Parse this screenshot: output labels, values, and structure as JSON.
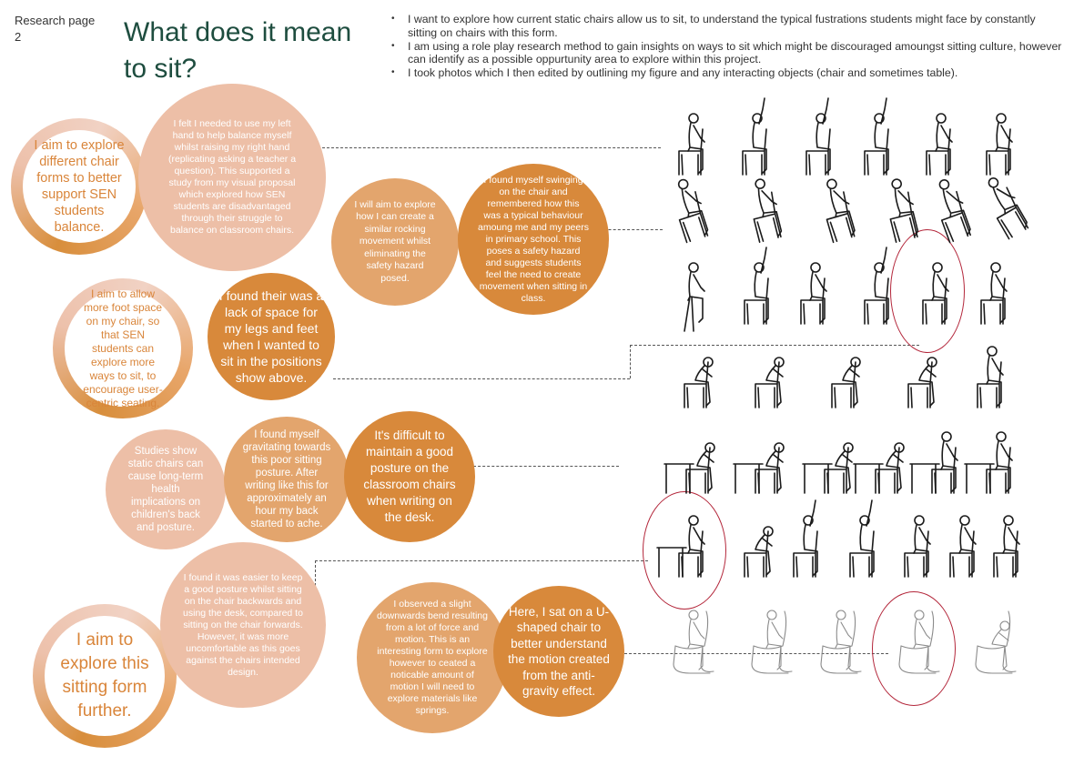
{
  "header": {
    "page_label": "Research page 2",
    "title": "What does it mean to sit?"
  },
  "intro_bullets": [
    "I want to explore how current static chairs allow us to sit, to understand the typical fustrations students might face by constantly sitting on chairs with this form.",
    "I am using a role play research method to gain insights on ways to sit which might be discouraged amoungst sitting culture, however can identify as a possible oppurtunity area to explore within this project.",
    "I took photos which I then edited by outlining my figure and any interacting objects (chair and sometimes table)."
  ],
  "aims": {
    "balance": "I aim to explore different chair forms to better support SEN students balance.",
    "foot_space": "I aim to allow more foot space on my chair, so that SEN students can explore more ways to sit, to encourage user-centric seating.",
    "sitting_form": "I aim to explore this sitting form further."
  },
  "notes": {
    "left_hand": "I felt I needed to use my left hand to help balance myself whilst raising my right hand (replicating asking a teacher a question). This supported a study from my visual proposal which explored how SEN students are disadvantaged through their struggle to balance on classroom chairs.",
    "rocking": "I will aim to explore how I can create a similar rocking movement whilst eliminating the safety hazard posed.",
    "swinging": "I found myself swinging on the chair and remembered how this was a typical behaviour amoung me and my peers in primary school. This poses a safety hazard and suggests students feel the need to create movement when sitting in class.",
    "legs_space": "I found their was a lack of space for my legs and feet when I wanted to sit in the positions show above.",
    "static_chairs": "Studies show static chairs can cause long-term health implications on children's back and posture.",
    "poor_posture": "I found myself gravitating towards this poor sitting posture. After writing like this for approximately an hour my back started to ache.",
    "difficult_posture": "It's difficult to maintain a good posture on the classroom chairs when writing on the desk.",
    "backwards": "I found it was easier to keep a good posture whilst sitting on the chair backwards and using the desk, compared to sitting on the chair forwards. However, it was more uncomfortable as this goes against the chairs intended design.",
    "downwards_bend": "I observed a slight downwards bend resulting from a lot of force and motion. This is an interesting form to explore however to ceated a noticable amount of motion I will need to explore materials like springs.",
    "u_shaped": "Here, I sat on a U-shaped chair to better understand the motion created from the anti-gravity effect."
  },
  "colors": {
    "title_green": "#1e4d3f",
    "light_circle": "#edbfa7",
    "dark_circle": "#d8893b",
    "aim_text": "#d9853a",
    "highlight_ring": "#b3263a"
  },
  "photo_grid": {
    "rows": 7,
    "figures_per_row": [
      6,
      6,
      6,
      5,
      6,
      6,
      5
    ],
    "highlighted": [
      "row 3 figure 5",
      "row 6 figure 1",
      "row 7 figure 4"
    ]
  }
}
